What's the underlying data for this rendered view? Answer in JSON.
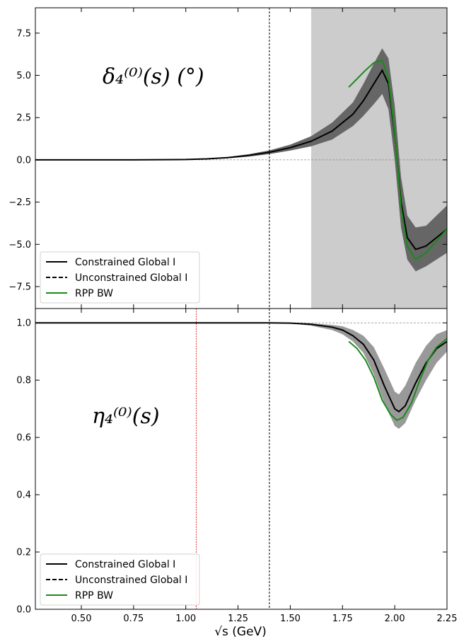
{
  "chart_data": [
    {
      "type": "line",
      "panel": "top",
      "panel_label": "δ₄⁽⁰⁾(s) (°)",
      "xlim": [
        0.28,
        2.25
      ],
      "ylim": [
        -8.8,
        9.0
      ],
      "x_ticks": [
        0.5,
        0.75,
        1.0,
        1.25,
        1.5,
        1.75,
        2.0,
        2.25
      ],
      "y_ticks": [
        -7.5,
        -5.0,
        -2.5,
        0.0,
        2.5,
        5.0,
        7.5
      ],
      "y_tick_labels": [
        "−7.5",
        "−5.0",
        "−2.5",
        "0.0",
        "2.5",
        "5.0",
        "7.5"
      ],
      "shaded_region_x": [
        1.6,
        2.25
      ],
      "reference_lines": {
        "horizontal_dashed_y": 0.0,
        "vertical_dashed_x": 1.4
      },
      "legend": {
        "placement": "lower-left",
        "entries": [
          "Constrained Global I",
          "Unconstrained Global I",
          "RPP BW"
        ]
      },
      "series": [
        {
          "name": "Constrained Global I",
          "x": [
            0.28,
            0.5,
            0.75,
            1.0,
            1.1,
            1.2,
            1.3,
            1.4,
            1.5,
            1.6,
            1.7,
            1.8,
            1.85,
            1.9,
            1.94,
            1.97,
            2.0,
            2.03,
            2.06,
            2.1,
            2.15,
            2.2,
            2.25
          ],
          "y": [
            0.0,
            0.0,
            0.0,
            0.02,
            0.06,
            0.13,
            0.26,
            0.45,
            0.72,
            1.1,
            1.7,
            2.7,
            3.5,
            4.5,
            5.3,
            4.5,
            1.5,
            -2.5,
            -4.6,
            -5.3,
            -5.1,
            -4.6,
            -4.1
          ],
          "band_upper": [
            0.0,
            0.0,
            0.0,
            0.03,
            0.08,
            0.17,
            0.33,
            0.56,
            0.9,
            1.4,
            2.2,
            3.4,
            4.5,
            5.7,
            6.6,
            6.0,
            3.2,
            -1.0,
            -3.3,
            -4.0,
            -3.9,
            -3.3,
            -2.7
          ],
          "band_lower": [
            0.0,
            0.0,
            0.0,
            0.01,
            0.04,
            0.09,
            0.19,
            0.34,
            0.55,
            0.8,
            1.2,
            2.0,
            2.6,
            3.3,
            3.9,
            3.0,
            0.0,
            -4.0,
            -5.9,
            -6.6,
            -6.3,
            -5.9,
            -5.5
          ]
        },
        {
          "name": "RPP BW",
          "color": "#1a8a1a",
          "x": [
            1.78,
            1.82,
            1.86,
            1.9,
            1.94,
            1.97,
            2.0,
            2.03,
            2.06,
            2.1,
            2.15,
            2.2,
            2.25
          ],
          "y": [
            4.3,
            4.8,
            5.3,
            5.75,
            5.9,
            4.8,
            1.6,
            -2.8,
            -5.1,
            -5.9,
            -5.5,
            -4.8,
            -4.1
          ]
        }
      ]
    },
    {
      "type": "line",
      "panel": "bottom",
      "panel_label": "η₄⁽⁰⁾(s)",
      "xlabel": "√s (GeV)",
      "xlim": [
        0.28,
        2.25
      ],
      "ylim": [
        0.0,
        1.05
      ],
      "x_ticks": [
        0.5,
        0.75,
        1.0,
        1.25,
        1.5,
        1.75,
        2.0,
        2.25
      ],
      "x_tick_labels": [
        "0.50",
        "0.75",
        "1.00",
        "1.25",
        "1.50",
        "1.75",
        "2.00",
        "2.25"
      ],
      "y_ticks": [
        0.0,
        0.2,
        0.4,
        0.6,
        0.8,
        1.0
      ],
      "y_tick_labels": [
        "0.0",
        "0.2",
        "0.4",
        "0.6",
        "0.8",
        "1.0"
      ],
      "reference_lines": {
        "horizontal_dashed_y": 1.0,
        "vertical_dashed_x": 1.4,
        "vertical_red_dashed_x": 1.05
      },
      "legend": {
        "placement": "lower-left",
        "entries": [
          "Constrained Global I",
          "Unconstrained Global I",
          "RPP BW"
        ]
      },
      "series": [
        {
          "name": "Constrained Global I",
          "x": [
            0.28,
            0.5,
            1.0,
            1.4,
            1.5,
            1.6,
            1.7,
            1.75,
            1.8,
            1.85,
            1.9,
            1.95,
            2.0,
            2.02,
            2.05,
            2.1,
            2.15,
            2.2,
            2.25
          ],
          "y": [
            1.0,
            1.0,
            1.0,
            1.0,
            0.999,
            0.995,
            0.985,
            0.975,
            0.955,
            0.925,
            0.87,
            0.78,
            0.7,
            0.69,
            0.71,
            0.79,
            0.86,
            0.91,
            0.935
          ],
          "band_upper": [
            1.0,
            1.0,
            1.0,
            1.0,
            1.0,
            0.998,
            0.993,
            0.988,
            0.975,
            0.955,
            0.915,
            0.84,
            0.76,
            0.75,
            0.78,
            0.86,
            0.92,
            0.96,
            0.975
          ],
          "band_lower": [
            1.0,
            1.0,
            1.0,
            1.0,
            0.998,
            0.99,
            0.975,
            0.96,
            0.935,
            0.895,
            0.82,
            0.72,
            0.64,
            0.63,
            0.65,
            0.73,
            0.8,
            0.86,
            0.9
          ]
        },
        {
          "name": "RPP BW",
          "color": "#1a8a1a",
          "x": [
            1.78,
            1.82,
            1.86,
            1.9,
            1.94,
            1.98,
            2.01,
            2.04,
            2.08,
            2.12,
            2.16,
            2.2,
            2.25
          ],
          "y": [
            0.935,
            0.91,
            0.87,
            0.81,
            0.73,
            0.68,
            0.66,
            0.67,
            0.72,
            0.8,
            0.87,
            0.915,
            0.945
          ]
        }
      ]
    }
  ]
}
